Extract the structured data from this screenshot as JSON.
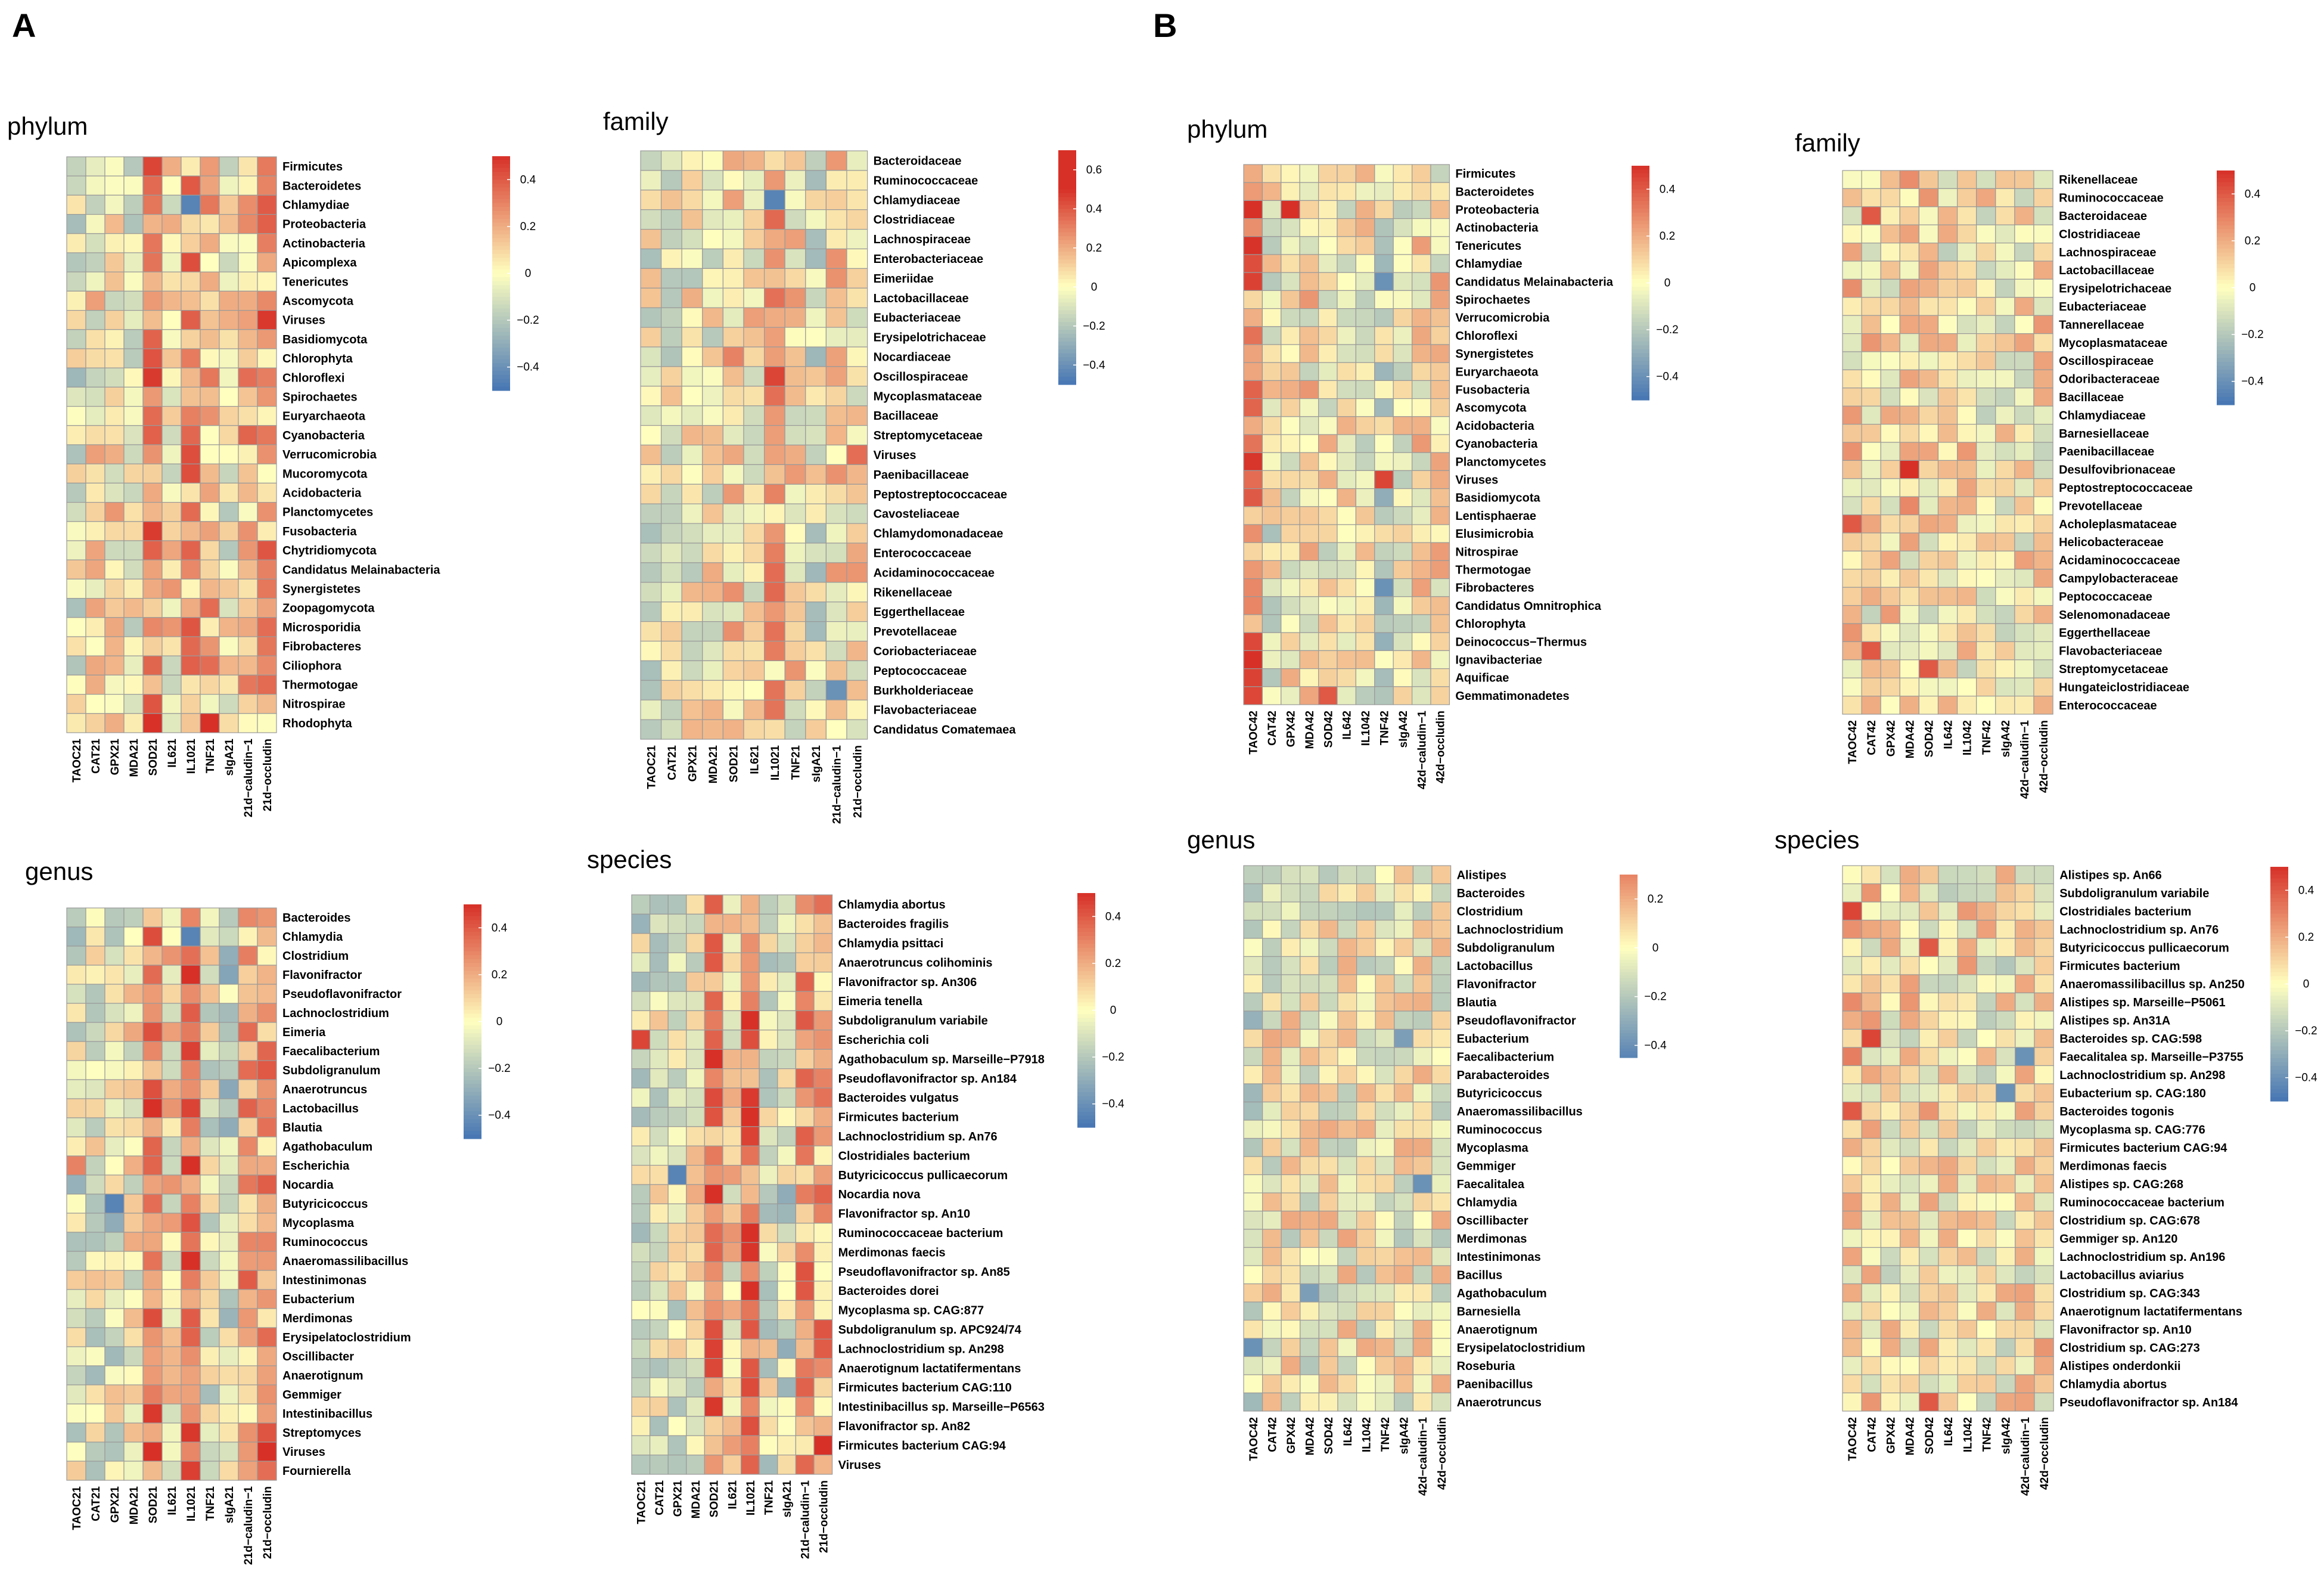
{
  "panels": {
    "A": "A",
    "B": "B"
  },
  "palette": {
    "low": "#4575b4",
    "mid": "#ffffbf",
    "high": "#d73027"
  },
  "chart_data": [
    {
      "id": "A-phylum",
      "type": "heatmap",
      "panel": "A",
      "title": "phylum",
      "rows": [
        "Firmicutes",
        "Bacteroidetes",
        "Chlamydiae",
        "Proteobacteria",
        "Actinobacteria",
        "Apicomplexa",
        "Tenericutes",
        "Ascomycota",
        "Viruses",
        "Basidiomycota",
        "Chlorophyta",
        "Chloroflexi",
        "Spirochaetes",
        "Euryarchaeota",
        "Cyanobacteria",
        "Verrucomicrobia",
        "Mucoromycota",
        "Acidobacteria",
        "Planctomycetes",
        "Fusobacteria",
        "Chytridiomycota",
        "Candidatus Melainabacteria",
        "Synergistetes",
        "Zoopagomycota",
        "Microsporidia",
        "Fibrobacteres",
        "Ciliophora",
        "Thermotogae",
        "Nitrospirae",
        "Rhodophyta"
      ],
      "columns": [
        "TAOC21",
        "CAT21",
        "GPX21",
        "MDA21",
        "SOD21",
        "IL621",
        "IL1021",
        "TNF21",
        "sIgA21",
        "21d−caludin−1",
        "21d−occludin"
      ],
      "legend": {
        "ticks": [
          0.4,
          0.2,
          0,
          -0.2,
          -0.4
        ],
        "tick_labels": [
          "0.4",
          "0.2",
          "0",
          "−0.2",
          "−0.4"
        ],
        "min": -0.5,
        "max": 0.5
      },
      "seed": 11,
      "col_bias": [
        -0.05,
        0.03,
        0.05,
        -0.02,
        0.3,
        0.05,
        0.22,
        0.15,
        0.0,
        0.18,
        0.2
      ],
      "hot": [
        [
          8,
          10,
          0.48
        ],
        [
          29,
          7,
          0.55
        ],
        [
          2,
          6,
          -0.45
        ],
        [
          0,
          4,
          0.45
        ],
        [
          1,
          6,
          0.4
        ]
      ]
    },
    {
      "id": "A-family",
      "type": "heatmap",
      "panel": "A",
      "title": "family",
      "rows": [
        "Bacteroidaceae",
        "Ruminococcaceae",
        "Chlamydiaceae",
        "Clostridiaceae",
        "Lachnospiraceae",
        "Enterobacteriaceae",
        "Eimeriidae",
        "Lactobacillaceae",
        "Eubacteriaceae",
        "Erysipelotrichaceae",
        "Nocardiaceae",
        "Oscillospiraceae",
        "Mycoplasmataceae",
        "Bacillaceae",
        "Streptomycetaceae",
        "Viruses",
        "Paenibacillaceae",
        "Peptostreptococcaceae",
        "Cavosteliaceae",
        "Chlamydomonadaceae",
        "Enterococcaceae",
        "Acidaminococcaceae",
        "Rikenellaceae",
        "Eggerthellaceae",
        "Prevotellaceae",
        "Coriobacteriaceae",
        "Peptococcaceae",
        "Burkholderiaceae",
        "Flavobacteriaceae",
        "Candidatus Comatemaea"
      ],
      "columns": [
        "TAOC21",
        "CAT21",
        "GPX21",
        "MDA21",
        "SOD21",
        "IL621",
        "IL1021",
        "TNF21",
        "sIgA21",
        "21d−caludin−1",
        "21d−occludin"
      ],
      "legend": {
        "ticks": [
          0.6,
          0.4,
          0.2,
          0,
          -0.2,
          -0.4
        ],
        "tick_labels": [
          "0.6",
          "0.4",
          "0.2",
          "0",
          "−0.2",
          "−0.4"
        ],
        "min": -0.5,
        "max": 0.7
      },
      "seed": 23,
      "col_bias": [
        -0.05,
        -0.02,
        0.0,
        0.0,
        0.12,
        0.05,
        0.18,
        0.05,
        -0.05,
        0.08,
        0.05
      ],
      "hot": [
        [
          2,
          6,
          -0.45
        ],
        [
          11,
          6,
          0.45
        ],
        [
          27,
          9,
          -0.4
        ],
        [
          15,
          10,
          0.35
        ]
      ]
    },
    {
      "id": "A-genus",
      "type": "heatmap",
      "panel": "A",
      "title": "genus",
      "rows": [
        "Bacteroides",
        "Chlamydia",
        "Clostridium",
        "Flavonifractor",
        "Pseudoflavonifractor",
        "Lachnoclostridium",
        "Eimeria",
        "Faecalibacterium",
        "Subdoligranulum",
        "Anaerotruncus",
        "Lactobacillus",
        "Blautia",
        "Agathobaculum",
        "Escherichia",
        "Nocardia",
        "Butyricicoccus",
        "Mycoplasma",
        "Ruminococcus",
        "Anaeromassilibacillus",
        "Intestinimonas",
        "Eubacterium",
        "Merdimonas",
        "Erysipelatoclostridium",
        "Oscillibacter",
        "Anaerotignum",
        "Gemmiger",
        "Intestinibacillus",
        "Streptomyces",
        "Viruses",
        "Fournierella"
      ],
      "columns": [
        "TAOC21",
        "CAT21",
        "GPX21",
        "MDA21",
        "SOD21",
        "IL621",
        "IL1021",
        "TNF21",
        "sIgA21",
        "21d−caludin−1",
        "21d−occludin"
      ],
      "legend": {
        "ticks": [
          0.4,
          0.2,
          0,
          -0.2,
          -0.4
        ],
        "tick_labels": [
          "0.4",
          "0.2",
          "0",
          "−0.2",
          "−0.4"
        ],
        "min": -0.5,
        "max": 0.5
      },
      "seed": 37,
      "col_bias": [
        -0.08,
        -0.05,
        -0.05,
        0.02,
        0.32,
        0.05,
        0.38,
        -0.05,
        -0.12,
        0.2,
        0.22
      ],
      "hot": [
        [
          1,
          6,
          -0.45
        ],
        [
          15,
          2,
          -0.45
        ],
        [
          16,
          2,
          -0.3
        ],
        [
          28,
          10,
          0.5
        ],
        [
          29,
          10,
          0.35
        ],
        [
          13,
          0,
          0.3
        ]
      ]
    },
    {
      "id": "A-species",
      "type": "heatmap",
      "panel": "A",
      "title": "species",
      "rows": [
        "Chlamydia abortus",
        "Bacteroides fragilis",
        "Chlamydia psittaci",
        "Anaerotruncus colihominis",
        "Flavonifractor sp. An306",
        "Eimeria tenella",
        "Subdoligranulum variabile",
        "Escherichia coli",
        "Agathobaculum sp. Marseille−P7918",
        "Pseudoflavonifractor sp. An184",
        "Bacteroides vulgatus",
        "Firmicutes bacterium",
        "Lachnoclostridium sp. An76",
        "Clostridiales bacterium",
        "Butyricicoccus pullicaecorum",
        "Nocardia nova",
        "Flavonifractor sp. An10",
        "Ruminococcaceae bacterium",
        "Merdimonas faecis",
        "Pseudoflavonifractor sp. An85",
        "Bacteroides dorei",
        "Mycoplasma sp. CAG:877",
        "Subdoligranulum sp. APC924/74",
        "Lachnoclostridium sp. An298",
        "Anaerotignum lactatifermentans",
        "Firmicutes bacterium CAG:110",
        "Intestinibacillus sp. Marseille−P6563",
        "Flavonifractor sp. An82",
        "Firmicutes bacterium CAG:94",
        "Viruses"
      ],
      "columns": [
        "TAOC21",
        "CAT21",
        "GPX21",
        "MDA21",
        "SOD21",
        "IL621",
        "IL1021",
        "TNF21",
        "sIgA21",
        "21d−caludin−1",
        "21d−occludin"
      ],
      "legend": {
        "ticks": [
          0.4,
          0.2,
          0,
          -0.2,
          -0.4
        ],
        "tick_labels": [
          "0.4",
          "0.2",
          "0",
          "−0.2",
          "−0.4"
        ],
        "min": -0.5,
        "max": 0.5
      },
      "seed": 53,
      "col_bias": [
        -0.08,
        -0.05,
        -0.05,
        0.02,
        0.3,
        0.05,
        0.32,
        -0.05,
        -0.1,
        0.22,
        0.2
      ],
      "hot": [
        [
          7,
          0,
          0.45
        ],
        [
          14,
          2,
          -0.45
        ],
        [
          20,
          6,
          0.5
        ],
        [
          28,
          10,
          0.5
        ],
        [
          8,
          4,
          0.5
        ]
      ]
    },
    {
      "id": "B-phylum",
      "type": "heatmap",
      "panel": "B",
      "title": "phylum",
      "rows": [
        "Firmicutes",
        "Bacteroidetes",
        "Proteobacteria",
        "Actinobacteria",
        "Tenericutes",
        "Chlamydiae",
        "Candidatus Melainabacteria",
        "Spirochaetes",
        "Verrucomicrobia",
        "Chloroflexi",
        "Synergistetes",
        "Euryarchaeota",
        "Fusobacteria",
        "Ascomycota",
        "Acidobacteria",
        "Cyanobacteria",
        "Planctomycetes",
        "Viruses",
        "Basidiomycota",
        "Lentisphaerae",
        "Elusimicrobia",
        "Nitrospirae",
        "Thermotogae",
        "Fibrobacteres",
        "Candidatus Omnitrophica",
        "Chlorophyta",
        "Deinococcus−Thermus",
        "Ignavibacteriae",
        "Aquificae",
        "Gemmatimonadetes"
      ],
      "columns": [
        "TAOC42",
        "CAT42",
        "GPX42",
        "MDA42",
        "SOD42",
        "IL642",
        "IL1042",
        "TNF42",
        "sIgA42",
        "42d−caludin−1",
        "42d−occludin"
      ],
      "legend": {
        "ticks": [
          0.4,
          0.2,
          0,
          -0.2,
          -0.4
        ],
        "tick_labels": [
          "0.4",
          "0.2",
          "0",
          "−0.2",
          "−0.4"
        ],
        "min": -0.5,
        "max": 0.5
      },
      "seed": 71,
      "col_bias": [
        0.3,
        -0.02,
        0.05,
        0.05,
        0.02,
        0.02,
        0.0,
        -0.1,
        0.0,
        0.05,
        0.05
      ],
      "hot": [
        [
          2,
          2,
          0.5
        ],
        [
          17,
          7,
          0.45
        ],
        [
          23,
          7,
          -0.4
        ],
        [
          6,
          7,
          -0.4
        ],
        [
          29,
          4,
          0.4
        ]
      ]
    },
    {
      "id": "B-family",
      "type": "heatmap",
      "panel": "B",
      "title": "family",
      "rows": [
        "Rikenellaceae",
        "Ruminococcaceae",
        "Bacteroidaceae",
        "Clostridiaceae",
        "Lachnospiraceae",
        "Lactobacillaceae",
        "Erysipelotrichaceae",
        "Eubacteriaceae",
        "Tannerellaceae",
        "Mycoplasmataceae",
        "Oscillospiraceae",
        "Odoribacteraceae",
        "Bacillaceae",
        "Chlamydiaceae",
        "Barnesiellaceae",
        "Paenibacillaceae",
        "Desulfovibrionaceae",
        "Peptostreptococcaceae",
        "Prevotellaceae",
        "Acholeplasmataceae",
        "Helicobacteraceae",
        "Acidaminococcaceae",
        "Campylobacteraceae",
        "Peptococcaceae",
        "Selenomonadaceae",
        "Eggerthellaceae",
        "Flavobacteriaceae",
        "Streptomycetaceae",
        "Hungateiclostridiaceae",
        "Enterococcaceae"
      ],
      "columns": [
        "TAOC42",
        "CAT42",
        "GPX42",
        "MDA42",
        "SOD42",
        "IL642",
        "IL1042",
        "TNF42",
        "sIgA42",
        "42d−caludin−1",
        "42d−occludin"
      ],
      "legend": {
        "ticks": [
          0.4,
          0.2,
          0,
          -0.2,
          -0.4
        ],
        "tick_labels": [
          "0.4",
          "0.2",
          "0",
          "−0.2",
          "−0.4"
        ],
        "min": -0.5,
        "max": 0.5
      },
      "seed": 89,
      "col_bias": [
        0.08,
        0.05,
        0.05,
        0.08,
        0.05,
        0.02,
        0.05,
        0.02,
        0.02,
        0.05,
        0.05
      ],
      "hot": [
        [
          16,
          3,
          0.5
        ],
        [
          2,
          1,
          0.4
        ],
        [
          19,
          0,
          0.4
        ],
        [
          26,
          1,
          0.4
        ],
        [
          27,
          4,
          0.4
        ]
      ]
    },
    {
      "id": "B-genus",
      "type": "heatmap",
      "panel": "B",
      "title": "genus",
      "rows": [
        "Alistipes",
        "Bacteroides",
        "Clostridium",
        "Lachnoclostridium",
        "Subdoligranulum",
        "Lactobacillus",
        "Flavonifractor",
        "Blautia",
        "Pseudoflavonifractor",
        "Eubacterium",
        "Faecalibacterium",
        "Parabacteroides",
        "Butyricicoccus",
        "Anaeromassilibacillus",
        "Ruminococcus",
        "Mycoplasma",
        "Gemmiger",
        "Faecalitalea",
        "Chlamydia",
        "Oscillibacter",
        "Merdimonas",
        "Intestinimonas",
        "Bacillus",
        "Agathobaculum",
        "Barnesiella",
        "Anaerotignum",
        "Erysipelatoclostridium",
        "Roseburia",
        "Paenibacillus",
        "Anaerotruncus"
      ],
      "columns": [
        "TAOC42",
        "CAT42",
        "GPX42",
        "MDA42",
        "SOD42",
        "IL642",
        "IL1042",
        "TNF42",
        "sIgA42",
        "42d−caludin−1",
        "42d−occludin"
      ],
      "legend": {
        "ticks": [
          0.2,
          0,
          -0.2,
          -0.4
        ],
        "tick_labels": [
          "0.2",
          "0",
          "−0.2",
          "−0.4"
        ],
        "min": -0.45,
        "max": 0.3
      },
      "seed": 97,
      "col_bias": [
        -0.08,
        0.0,
        0.0,
        0.0,
        0.0,
        0.02,
        0.0,
        0.0,
        0.0,
        0.0,
        0.0
      ],
      "hot": [
        [
          17,
          9,
          -0.4
        ],
        [
          9,
          8,
          -0.35
        ],
        [
          26,
          0,
          -0.4
        ],
        [
          23,
          3,
          -0.35
        ]
      ]
    },
    {
      "id": "B-species",
      "type": "heatmap",
      "panel": "B",
      "title": "species",
      "rows": [
        "Alistipes sp. An66",
        "Subdoligranulum variabile",
        "Clostridiales bacterium",
        "Lachnoclostridium sp. An76",
        "Butyricicoccus pullicaecorum",
        "Firmicutes bacterium",
        "Anaeromassilibacillus sp. An250",
        "Alistipes sp. Marseille−P5061",
        "Alistipes sp. An31A",
        "Bacteroides sp. CAG:598",
        "Faecalitalea sp. Marseille−P3755",
        "Lachnoclostridium sp. An298",
        "Eubacterium sp. CAG:180",
        "Bacteroides togonis",
        "Mycoplasma sp. CAG:776",
        "Firmicutes bacterium CAG:94",
        "Merdimonas faecis",
        "Alistipes sp. CAG:268",
        "Ruminococcaceae bacterium",
        "Clostridium sp. CAG:678",
        "Gemmiger sp. An120",
        "Lachnoclostridium sp. An196",
        "Lactobacillus aviarius",
        "Clostridium sp. CAG:343",
        "Anaerotignum lactatifermentans",
        "Flavonifractor sp. An10",
        "Clostridium sp. CAG:273",
        "Alistipes onderdonkii",
        "Chlamydia abortus",
        "Pseudoflavonifractor sp. An184"
      ],
      "columns": [
        "TAOC42",
        "CAT42",
        "GPX42",
        "MDA42",
        "SOD42",
        "IL642",
        "IL1042",
        "TNF42",
        "sIgA42",
        "42d−caludin−1",
        "42d−occludin"
      ],
      "legend": {
        "ticks": [
          0.4,
          0.2,
          0,
          -0.2,
          -0.4
        ],
        "tick_labels": [
          "0.4",
          "0.2",
          "0",
          "−0.2",
          "−0.4"
        ],
        "min": -0.5,
        "max": 0.5
      },
      "seed": 113,
      "col_bias": [
        0.1,
        0.05,
        0.02,
        0.05,
        0.05,
        0.02,
        0.05,
        0.02,
        0.0,
        0.05,
        0.05
      ],
      "hot": [
        [
          2,
          0,
          0.45
        ],
        [
          9,
          1,
          0.45
        ],
        [
          4,
          4,
          0.4
        ],
        [
          10,
          9,
          -0.4
        ],
        [
          12,
          8,
          -0.4
        ],
        [
          13,
          0,
          0.4
        ],
        [
          29,
          4,
          0.4
        ]
      ]
    }
  ]
}
